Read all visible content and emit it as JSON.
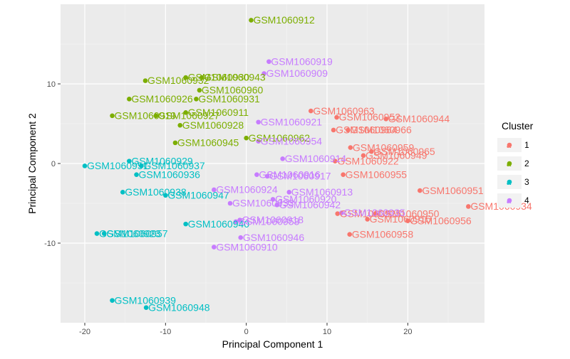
{
  "chart_data": {
    "type": "scatter",
    "xlabel": "Principal Component 1",
    "ylabel": "Principal Component 2",
    "xlim": [
      -23,
      29.5
    ],
    "ylim": [
      -20,
      20
    ],
    "xticks": [
      -20,
      -10,
      0,
      10,
      20
    ],
    "yticks": [
      -10,
      0,
      10
    ],
    "grid": true,
    "legend": {
      "title": "Cluster",
      "position": "right"
    },
    "series": [
      {
        "name": "1",
        "color": "#F8766D",
        "points": [
          {
            "x": 8.0,
            "y": 6.6,
            "label": "GSM1060963"
          },
          {
            "x": 11.2,
            "y": 5.8,
            "label": "GSM1060952"
          },
          {
            "x": 17.3,
            "y": 5.6,
            "label": "GSM1060944"
          },
          {
            "x": 10.8,
            "y": 4.2,
            "label": "GSM1060964"
          },
          {
            "x": 12.6,
            "y": 4.2,
            "label": "GSM1060966"
          },
          {
            "x": 12.9,
            "y": 2.0,
            "label": "GSM1060959"
          },
          {
            "x": 15.5,
            "y": 1.5,
            "label": "GSM1060965"
          },
          {
            "x": 14.5,
            "y": 1.0,
            "label": "GSM1060949"
          },
          {
            "x": 11.0,
            "y": 0.3,
            "label": "GSM1060922"
          },
          {
            "x": 12.0,
            "y": -1.4,
            "label": "GSM1060955"
          },
          {
            "x": 21.5,
            "y": -3.4,
            "label": "GSM1060951"
          },
          {
            "x": 27.5,
            "y": -5.4,
            "label": "GSM1060934"
          },
          {
            "x": 11.3,
            "y": -6.3,
            "label": "GSM1060925"
          },
          {
            "x": 16.0,
            "y": -6.3,
            "label": "GSM1060950"
          },
          {
            "x": 15.0,
            "y": -7.0,
            "label": "GSM1060915"
          },
          {
            "x": 20.0,
            "y": -7.2,
            "label": "GSM1060956"
          },
          {
            "x": 12.8,
            "y": -8.9,
            "label": "GSM1060958"
          }
        ]
      },
      {
        "name": "2",
        "color": "#7CAE00",
        "points": [
          {
            "x": 0.6,
            "y": 18.0,
            "label": "GSM1060912"
          },
          {
            "x": -12.5,
            "y": 10.4,
            "label": "GSM1060932"
          },
          {
            "x": -7.5,
            "y": 10.8,
            "label": "GSM1060930"
          },
          {
            "x": -5.5,
            "y": 10.8,
            "label": "GSM1060943"
          },
          {
            "x": -5.8,
            "y": 9.2,
            "label": "GSM1060960"
          },
          {
            "x": -14.5,
            "y": 8.1,
            "label": "GSM1060926"
          },
          {
            "x": -6.2,
            "y": 8.1,
            "label": "GSM1060931"
          },
          {
            "x": -7.5,
            "y": 6.4,
            "label": "GSM1060911"
          },
          {
            "x": -16.6,
            "y": 6.0,
            "label": "GSM1060919"
          },
          {
            "x": -11.2,
            "y": 6.0,
            "label": "GSM1060927"
          },
          {
            "x": -8.2,
            "y": 4.8,
            "label": "GSM1060928"
          },
          {
            "x": -8.8,
            "y": 2.6,
            "label": "GSM1060945"
          },
          {
            "x": 0.0,
            "y": 3.2,
            "label": "GSM1060962"
          }
        ]
      },
      {
        "name": "3",
        "color": "#00BFC4",
        "points": [
          {
            "x": -20.0,
            "y": -0.3,
            "label": "GSM1060951"
          },
          {
            "x": -14.5,
            "y": 0.3,
            "label": "GSM1060929"
          },
          {
            "x": -13.0,
            "y": -0.3,
            "label": "GSM1060937"
          },
          {
            "x": -13.6,
            "y": -1.4,
            "label": "GSM1060936"
          },
          {
            "x": -15.3,
            "y": -3.6,
            "label": "GSM1060938"
          },
          {
            "x": -10.0,
            "y": -4.0,
            "label": "GSM1060947"
          },
          {
            "x": -7.5,
            "y": -7.6,
            "label": "GSM1060940"
          },
          {
            "x": -18.5,
            "y": -8.8,
            "label": "GSM1060923"
          },
          {
            "x": -17.6,
            "y": -8.8,
            "label": "GSM1060957"
          },
          {
            "x": -16.6,
            "y": -17.2,
            "label": "GSM1060939"
          },
          {
            "x": -12.4,
            "y": -18.1,
            "label": "GSM1060948"
          }
        ]
      },
      {
        "name": "4",
        "color": "#C77CFF",
        "points": [
          {
            "x": 2.8,
            "y": 12.8,
            "label": "GSM1060919"
          },
          {
            "x": 2.2,
            "y": 11.3,
            "label": "GSM1060909"
          },
          {
            "x": 1.5,
            "y": 5.2,
            "label": "GSM1060921"
          },
          {
            "x": 1.5,
            "y": 2.8,
            "label": "GSM1060954"
          },
          {
            "x": 4.5,
            "y": 0.6,
            "label": "GSM1060914"
          },
          {
            "x": 1.3,
            "y": -1.4,
            "label": "GSM1060916"
          },
          {
            "x": 2.6,
            "y": -1.6,
            "label": "GSM1060917"
          },
          {
            "x": -4.0,
            "y": -3.3,
            "label": "GSM1060924"
          },
          {
            "x": -2.0,
            "y": -5.0,
            "label": "GSM1060933"
          },
          {
            "x": 5.3,
            "y": -3.6,
            "label": "GSM1060913"
          },
          {
            "x": 3.3,
            "y": -4.5,
            "label": "GSM1060920"
          },
          {
            "x": 3.8,
            "y": -5.2,
            "label": "GSM1060942"
          },
          {
            "x": 11.8,
            "y": -6.2,
            "label": "GSM1060935"
          },
          {
            "x": -1.3,
            "y": -7.3,
            "label": "GSM1060953"
          },
          {
            "x": -0.8,
            "y": -7.1,
            "label": "GSM1060918"
          },
          {
            "x": -0.7,
            "y": -9.3,
            "label": "GSM1060946"
          },
          {
            "x": -4.0,
            "y": -10.5,
            "label": "GSM1060910"
          }
        ]
      }
    ]
  }
}
